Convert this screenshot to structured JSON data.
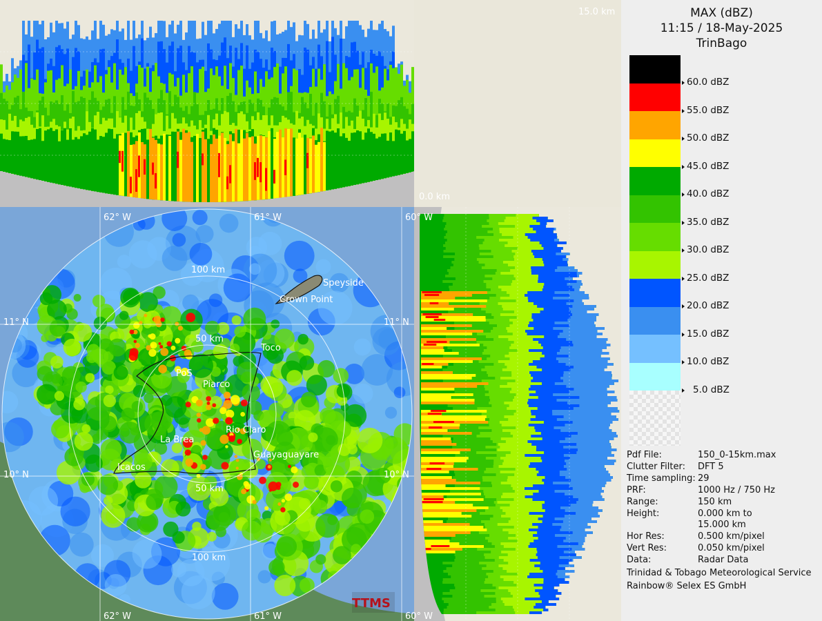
{
  "header": {
    "product": "MAX (dBZ)",
    "datetime": "11:15 / 18-May-2025",
    "site": "TrinBago"
  },
  "legend": {
    "colors": [
      "#000000",
      "#ff0000",
      "#ffa500",
      "#ffff00",
      "#00aa00",
      "#33c300",
      "#66dd00",
      "#a8f500",
      "#0055ff",
      "#3a8ff0",
      "#75c0ff",
      "#a8ffff"
    ],
    "labels": [
      "60.0 dBZ",
      "55.0 dBZ",
      "50.0 dBZ",
      "45.0 dBZ",
      "40.0 dBZ",
      "35.0 dBZ",
      "30.0 dBZ",
      "25.0 dBZ",
      "20.0 dBZ",
      "15.0 dBZ",
      "10.0 dBZ",
      "5.0 dBZ"
    ]
  },
  "info": [
    {
      "key": "Pdf File:",
      "value": "150_0-15km.max"
    },
    {
      "key": "Clutter Filter:",
      "value": "DFT 5"
    },
    {
      "key": "Time sampling:",
      "value": "29"
    },
    {
      "key": "PRF:",
      "value": "1000 Hz / 750 Hz"
    },
    {
      "key": "Range:",
      "value": "150 km"
    },
    {
      "key": "Height:",
      "value": "0.000 km to"
    },
    {
      "key": "",
      "value": "15.000 km"
    },
    {
      "key": "Hor Res:",
      "value": "0.500 km/pixel"
    },
    {
      "key": "Vert Res:",
      "value": "0.050 km/pixel"
    },
    {
      "key": "Data:",
      "value": "Radar Data"
    }
  ],
  "credits": [
    "Trinidad & Tobago Meteorological Service",
    "Rainbow® Selex ES GmbH"
  ],
  "map": {
    "lon_top": [
      "62° W",
      "61° W",
      "60° W"
    ],
    "lon_bottom": [
      "62° W",
      "61° W",
      "60° W"
    ],
    "lat_left": [
      "11° N",
      "10° N"
    ],
    "lat_right": [
      "11° N",
      "10° N"
    ],
    "range_rings": [
      "100 km",
      "50 km",
      "50 km",
      "100 km"
    ],
    "places": [
      "Speyside",
      "Crown Point",
      "Toco",
      "Piarco",
      "PoS",
      "La Brea",
      "Rio Claro",
      "Guayaguayare",
      "Icacos"
    ],
    "logo_text": "TTMS"
  },
  "section_labels": {
    "top_height": "15.0 km",
    "base_height": "0.0 km"
  }
}
